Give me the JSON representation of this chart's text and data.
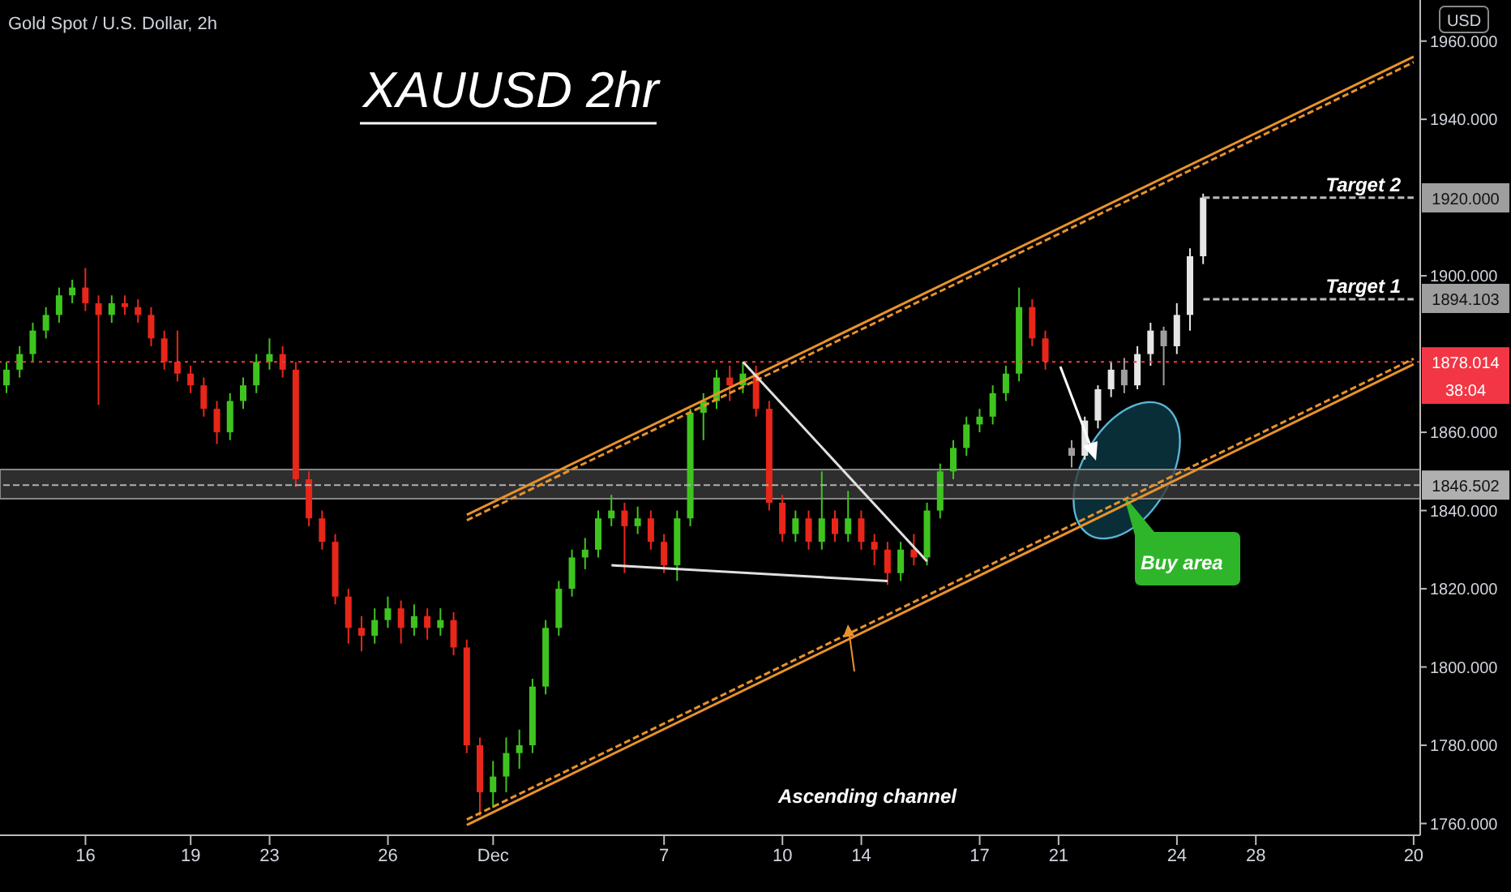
{
  "chart_data": {
    "type": "candlestick",
    "title": "XAUUSD 2hr",
    "subtitle": "Gold Spot / U.S. Dollar, 2h",
    "ylabel": "USD",
    "categories": [
      null,
      null,
      null,
      null,
      null,
      null,
      "16",
      null,
      null,
      null,
      null,
      null,
      null,
      null,
      "19",
      null,
      null,
      null,
      null,
      null,
      "23",
      null,
      null,
      null,
      null,
      null,
      null,
      null,
      null,
      "26",
      null,
      null,
      null,
      null,
      null,
      null,
      null,
      "Dec",
      null,
      null,
      null,
      null,
      null,
      null,
      null,
      null,
      null,
      null,
      null,
      null,
      "7",
      null,
      null,
      null,
      null,
      null,
      null,
      null,
      null,
      "10",
      null,
      null,
      null,
      null,
      null,
      "14",
      null,
      null,
      null,
      null,
      null,
      null,
      null,
      null,
      "17",
      null,
      null,
      null,
      null,
      null,
      "21",
      null,
      null,
      null,
      null,
      null,
      null,
      null,
      null,
      "24",
      null,
      null,
      null,
      null,
      null,
      "28",
      null,
      null,
      null,
      null,
      null,
      null,
      null,
      null,
      null,
      null,
      null,
      "20"
    ],
    "ylim": [
      1757,
      1970.5
    ],
    "yticks": [
      {
        "value": 1760,
        "label": "1760.000"
      },
      {
        "value": 1780,
        "label": "1780.000"
      },
      {
        "value": 1800,
        "label": "1800.000"
      },
      {
        "value": 1820,
        "label": "1820.000"
      },
      {
        "value": 1840,
        "label": "1840.000"
      },
      {
        "value": 1860,
        "label": "1860.000"
      },
      {
        "value": 1900,
        "label": "1900.000"
      },
      {
        "value": 1940,
        "label": "1940.000"
      },
      {
        "value": 1960,
        "label": "1960.000"
      }
    ],
    "series": [
      {
        "type": "line",
        "color": "#e8922a",
        "line_style": "solid",
        "values": [
          null,
          null,
          null,
          null,
          null,
          null,
          null,
          null,
          null,
          null,
          null,
          null,
          null,
          null,
          null,
          null,
          null,
          null,
          null,
          null,
          null,
          null,
          null,
          null,
          null,
          null,
          null,
          null,
          null,
          null,
          null,
          null,
          null,
          null,
          null,
          1838.9,
          null,
          null,
          null,
          null,
          null,
          null,
          null,
          null,
          null,
          null,
          null,
          null,
          null,
          null,
          null,
          null,
          null,
          null,
          null,
          null,
          null,
          null,
          null,
          null,
          null,
          null,
          null,
          null,
          null,
          null,
          null,
          null,
          null,
          null,
          null,
          null,
          null,
          null,
          null,
          null,
          null,
          null,
          null,
          null,
          null,
          null,
          null,
          null,
          null,
          null,
          null,
          null,
          null,
          null,
          null,
          null,
          null,
          null,
          null,
          null,
          null,
          null,
          null,
          null,
          null,
          null,
          null,
          null,
          null,
          null,
          null,
          1956
        ]
      },
      {
        "type": "line",
        "color": "#e8922a",
        "line_style": "dashed",
        "values": [
          null,
          null,
          null,
          null,
          null,
          null,
          null,
          null,
          null,
          null,
          null,
          null,
          null,
          null,
          null,
          null,
          null,
          null,
          null,
          null,
          null,
          null,
          null,
          null,
          null,
          null,
          null,
          null,
          null,
          null,
          null,
          null,
          null,
          null,
          null,
          1837.5,
          null,
          null,
          null,
          null,
          null,
          null,
          null,
          null,
          null,
          null,
          null,
          null,
          null,
          null,
          null,
          null,
          null,
          null,
          null,
          null,
          null,
          null,
          null,
          null,
          null,
          null,
          null,
          null,
          null,
          null,
          null,
          null,
          null,
          null,
          null,
          null,
          null,
          null,
          null,
          null,
          null,
          null,
          null,
          null,
          null,
          null,
          null,
          null,
          null,
          null,
          null,
          null,
          null,
          null,
          null,
          null,
          null,
          null,
          null,
          null,
          null,
          null,
          null,
          null,
          null,
          null,
          null,
          null,
          null,
          null,
          null,
          1954.6
        ]
      },
      {
        "type": "line",
        "color": "#e8922a",
        "line_style": "solid",
        "values": [
          null,
          null,
          null,
          null,
          null,
          null,
          null,
          null,
          null,
          null,
          null,
          null,
          null,
          null,
          null,
          null,
          null,
          null,
          null,
          null,
          null,
          null,
          null,
          null,
          null,
          null,
          null,
          null,
          null,
          null,
          null,
          null,
          null,
          null,
          null,
          1759.6,
          null,
          null,
          null,
          null,
          null,
          null,
          null,
          null,
          null,
          null,
          null,
          null,
          null,
          null,
          null,
          null,
          null,
          null,
          null,
          null,
          null,
          null,
          null,
          null,
          null,
          null,
          null,
          null,
          null,
          null,
          null,
          null,
          null,
          null,
          null,
          null,
          null,
          null,
          null,
          null,
          null,
          null,
          null,
          null,
          null,
          null,
          null,
          null,
          null,
          null,
          null,
          null,
          null,
          null,
          null,
          null,
          null,
          null,
          null,
          null,
          null,
          null,
          null,
          null,
          null,
          null,
          null,
          null,
          null,
          null,
          null,
          1877.4
        ]
      },
      {
        "type": "line",
        "color": "#e8922a",
        "line_style": "dashed",
        "values": [
          null,
          null,
          null,
          null,
          null,
          null,
          null,
          null,
          null,
          null,
          null,
          null,
          null,
          null,
          null,
          null,
          null,
          null,
          null,
          null,
          null,
          null,
          null,
          null,
          null,
          null,
          null,
          null,
          null,
          null,
          null,
          null,
          null,
          null,
          null,
          1761,
          null,
          null,
          null,
          null,
          null,
          null,
          null,
          null,
          null,
          null,
          null,
          null,
          null,
          null,
          null,
          null,
          null,
          null,
          null,
          null,
          null,
          null,
          null,
          null,
          null,
          null,
          null,
          null,
          null,
          null,
          null,
          null,
          null,
          null,
          null,
          null,
          null,
          null,
          null,
          null,
          null,
          null,
          null,
          null,
          null,
          null,
          null,
          null,
          null,
          null,
          null,
          null,
          null,
          null,
          null,
          null,
          null,
          null,
          null,
          null,
          null,
          null,
          null,
          null,
          null,
          null,
          null,
          null,
          null,
          null,
          null,
          1878.8
        ]
      },
      {
        "type": "line",
        "color": "#e0e0e0",
        "line_style": "solid",
        "values": [
          null,
          null,
          null,
          null,
          null,
          null,
          null,
          null,
          null,
          null,
          null,
          null,
          null,
          null,
          null,
          null,
          null,
          null,
          null,
          null,
          null,
          null,
          null,
          null,
          null,
          null,
          null,
          null,
          null,
          null,
          null,
          null,
          null,
          null,
          null,
          null,
          null,
          null,
          null,
          null,
          null,
          null,
          null,
          null,
          null,
          null,
          null,
          null,
          null,
          null,
          null,
          null,
          null,
          null,
          null,
          null,
          1878,
          null,
          null,
          null,
          null,
          null,
          null,
          null,
          null,
          null,
          null,
          null,
          null,
          null,
          1827,
          null,
          null,
          null,
          null,
          null,
          null,
          null,
          null,
          null,
          null,
          null,
          null,
          null,
          null,
          null,
          null,
          null,
          null,
          null,
          null,
          null,
          null,
          null,
          null,
          null,
          null,
          null,
          null,
          null,
          null,
          null,
          null,
          null,
          null,
          null,
          null,
          null
        ]
      },
      {
        "type": "line",
        "color": "#e0e0e0",
        "line_style": "solid",
        "values": [
          null,
          null,
          null,
          null,
          null,
          null,
          null,
          null,
          null,
          null,
          null,
          null,
          null,
          null,
          null,
          null,
          null,
          null,
          null,
          null,
          null,
          null,
          null,
          null,
          null,
          null,
          null,
          null,
          null,
          null,
          null,
          null,
          null,
          null,
          null,
          null,
          null,
          null,
          null,
          null,
          null,
          null,
          null,
          null,
          null,
          null,
          1826,
          null,
          null,
          null,
          null,
          null,
          null,
          null,
          null,
          null,
          null,
          null,
          null,
          null,
          null,
          null,
          null,
          null,
          null,
          null,
          null,
          1822,
          null,
          null,
          null,
          null,
          null,
          null,
          null,
          null,
          null,
          null,
          null,
          null,
          null,
          null,
          null,
          null,
          null,
          null,
          null,
          null,
          null,
          null,
          null,
          null,
          null,
          null,
          null,
          null,
          null,
          null,
          null,
          null,
          null,
          null,
          null,
          null,
          null,
          null,
          null,
          null
        ]
      },
      {
        "type": "line",
        "color": "#bbbbbb",
        "line_style": "dashed",
        "values": [
          null,
          null,
          null,
          null,
          null,
          null,
          null,
          null,
          null,
          null,
          null,
          null,
          null,
          null,
          null,
          null,
          null,
          null,
          null,
          null,
          null,
          null,
          null,
          null,
          null,
          null,
          null,
          null,
          null,
          null,
          null,
          null,
          null,
          null,
          null,
          null,
          null,
          null,
          null,
          null,
          null,
          null,
          null,
          null,
          null,
          null,
          null,
          null,
          null,
          null,
          null,
          null,
          null,
          null,
          null,
          null,
          null,
          null,
          null,
          null,
          null,
          null,
          null,
          null,
          null,
          null,
          null,
          null,
          null,
          null,
          null,
          null,
          null,
          null,
          null,
          null,
          null,
          null,
          null,
          null,
          null,
          null,
          null,
          null,
          null,
          null,
          null,
          null,
          null,
          null,
          null,
          1920,
          null,
          null,
          null,
          null,
          null,
          null,
          null,
          null,
          null,
          null,
          null,
          null,
          null,
          null,
          null,
          1920
        ]
      },
      {
        "type": "line",
        "color": "#bbbbbb",
        "line_style": "dashed",
        "values": [
          null,
          null,
          null,
          null,
          null,
          null,
          null,
          null,
          null,
          null,
          null,
          null,
          null,
          null,
          null,
          null,
          null,
          null,
          null,
          null,
          null,
          null,
          null,
          null,
          null,
          null,
          null,
          null,
          null,
          null,
          null,
          null,
          null,
          null,
          null,
          null,
          null,
          null,
          null,
          null,
          null,
          null,
          null,
          null,
          null,
          null,
          null,
          null,
          null,
          null,
          null,
          null,
          null,
          null,
          null,
          null,
          null,
          null,
          null,
          null,
          null,
          null,
          null,
          null,
          null,
          null,
          null,
          null,
          null,
          null,
          null,
          null,
          null,
          null,
          null,
          null,
          null,
          null,
          null,
          null,
          null,
          null,
          null,
          null,
          null,
          null,
          null,
          null,
          null,
          null,
          null,
          1894,
          null,
          null,
          null,
          null,
          null,
          null,
          null,
          null,
          null,
          null,
          null,
          null,
          null,
          null,
          null,
          1894
        ]
      },
      {
        "ohlc": [
          [
            1872,
            1878,
            1870,
            1876
          ],
          [
            1876,
            1882,
            1874,
            1880
          ],
          [
            1880,
            1888,
            1878,
            1886
          ],
          [
            1886,
            1892,
            1884,
            1890
          ],
          [
            1890,
            1897,
            1888,
            1895
          ],
          [
            1895,
            1899,
            1893,
            1897
          ],
          [
            1897,
            1902,
            1891,
            1893
          ],
          [
            1893,
            1895,
            1867,
            1890
          ],
          [
            1890,
            1895,
            1888,
            1893
          ],
          [
            1893,
            1895,
            1890,
            1892
          ],
          [
            1892,
            1894,
            1888,
            1890
          ],
          [
            1890,
            1892,
            1882,
            1884
          ],
          [
            1884,
            1886,
            1876,
            1878
          ],
          [
            1878,
            1886,
            1873,
            1875
          ],
          [
            1875,
            1877,
            1870,
            1872
          ],
          [
            1872,
            1874,
            1864,
            1866
          ],
          [
            1866,
            1868,
            1857,
            1860
          ],
          [
            1860,
            1870,
            1858,
            1868
          ],
          [
            1868,
            1874,
            1866,
            1872
          ],
          [
            1872,
            1880,
            1870,
            1878
          ],
          [
            1878,
            1884,
            1876,
            1880
          ],
          [
            1880,
            1882,
            1874,
            1876
          ],
          [
            1876,
            1878,
            1846,
            1848
          ],
          [
            1848,
            1850,
            1836,
            1838
          ],
          [
            1838,
            1840,
            1830,
            1832
          ],
          [
            1832,
            1834,
            1816,
            1818
          ],
          [
            1818,
            1820,
            1806,
            1810
          ],
          [
            1810,
            1813,
            1804,
            1808
          ],
          [
            1808,
            1815,
            1806,
            1812
          ],
          [
            1812,
            1818,
            1810,
            1815
          ],
          [
            1815,
            1817,
            1806,
            1810
          ],
          [
            1810,
            1816,
            1808,
            1813
          ],
          [
            1813,
            1815,
            1807,
            1810
          ],
          [
            1810,
            1815,
            1808,
            1812
          ],
          [
            1812,
            1814,
            1803,
            1805
          ],
          [
            1805,
            1807,
            1778,
            1780
          ],
          [
            1780,
            1782,
            1762,
            1768
          ],
          [
            1768,
            1776,
            1764,
            1772
          ],
          [
            1772,
            1782,
            1768,
            1778
          ],
          [
            1778,
            1784,
            1774,
            1780
          ],
          [
            1780,
            1797,
            1778,
            1795
          ],
          [
            1795,
            1812,
            1793,
            1810
          ],
          [
            1810,
            1822,
            1808,
            1820
          ],
          [
            1820,
            1830,
            1818,
            1828
          ],
          [
            1828,
            1833,
            1825,
            1830
          ],
          [
            1830,
            1840,
            1828,
            1838
          ],
          [
            1838,
            1844,
            1836,
            1840
          ],
          [
            1840,
            1842,
            1824,
            1836
          ],
          [
            1836,
            1841,
            1834,
            1838
          ],
          [
            1838,
            1840,
            1830,
            1832
          ],
          [
            1832,
            1834,
            1824,
            1826
          ],
          [
            1826,
            1840,
            1822,
            1838
          ],
          [
            1838,
            1866,
            1836,
            1865
          ],
          [
            1865,
            1870,
            1858,
            1868
          ],
          [
            1868,
            1876,
            1866,
            1874
          ],
          [
            1874,
            1877,
            1868,
            1872
          ],
          [
            1872,
            1878,
            1870,
            1875
          ],
          [
            1875,
            1877,
            1864,
            1866
          ],
          [
            1866,
            1868,
            1840,
            1842
          ],
          [
            1842,
            1844,
            1832,
            1834
          ],
          [
            1834,
            1840,
            1832,
            1838
          ],
          [
            1838,
            1840,
            1830,
            1832
          ],
          [
            1832,
            1850,
            1830,
            1838
          ],
          [
            1838,
            1840,
            1832,
            1834
          ],
          [
            1834,
            1845,
            1832,
            1838
          ],
          [
            1838,
            1840,
            1830,
            1832
          ],
          [
            1832,
            1834,
            1826,
            1830
          ],
          [
            1830,
            1832,
            1821,
            1824
          ],
          [
            1824,
            1832,
            1822,
            1830
          ],
          [
            1830,
            1834,
            1826,
            1828
          ],
          [
            1828,
            1842,
            1826,
            1840
          ],
          [
            1840,
            1852,
            1838,
            1850
          ],
          [
            1850,
            1858,
            1848,
            1856
          ],
          [
            1856,
            1864,
            1854,
            1862
          ],
          [
            1862,
            1866,
            1860,
            1864
          ],
          [
            1864,
            1872,
            1862,
            1870
          ],
          [
            1870,
            1877,
            1868,
            1875
          ],
          [
            1875,
            1897,
            1873,
            1892
          ],
          [
            1892,
            1894,
            1882,
            1884
          ],
          [
            1884,
            1886,
            1876,
            1878.014
          ],
          null,
          null,
          null,
          null,
          null,
          null,
          null,
          null,
          null,
          null,
          null,
          null,
          null,
          null,
          null,
          null,
          null,
          null,
          null,
          null,
          null,
          null,
          null,
          null,
          null,
          null,
          null,
          null
        ],
        "colors": [
          "#3fc41f",
          "#3fc41f",
          "#3fc41f",
          "#3fc41f",
          "#3fc41f",
          "#3fc41f",
          "#e8261a",
          "#e8261a",
          "#3fc41f",
          "#e8261a",
          "#e8261a",
          "#e8261a",
          "#e8261a",
          "#e8261a",
          "#e8261a",
          "#e8261a",
          "#e8261a",
          "#3fc41f",
          "#3fc41f",
          "#3fc41f",
          "#3fc41f",
          "#e8261a",
          "#e8261a",
          "#e8261a",
          "#e8261a",
          "#e8261a",
          "#e8261a",
          "#e8261a",
          "#3fc41f",
          "#3fc41f",
          "#e8261a",
          "#3fc41f",
          "#e8261a",
          "#3fc41f",
          "#e8261a",
          "#e8261a",
          "#e8261a",
          "#3fc41f",
          "#3fc41f",
          "#3fc41f",
          "#3fc41f",
          "#3fc41f",
          "#3fc41f",
          "#3fc41f",
          "#3fc41f",
          "#3fc41f",
          "#3fc41f",
          "#e8261a",
          "#3fc41f",
          "#e8261a",
          "#e8261a",
          "#3fc41f",
          "#3fc41f",
          "#3fc41f",
          "#3fc41f",
          "#e8261a",
          "#3fc41f",
          "#e8261a",
          "#e8261a",
          "#e8261a",
          "#3fc41f",
          "#e8261a",
          "#3fc41f",
          "#e8261a",
          "#3fc41f",
          "#e8261a",
          "#e8261a",
          "#e8261a",
          "#3fc41f",
          "#e8261a",
          "#3fc41f",
          "#3fc41f",
          "#3fc41f",
          "#3fc41f",
          "#3fc41f",
          "#3fc41f",
          "#3fc41f",
          "#3fc41f",
          "#e8261a",
          "#e8261a",
          null,
          null,
          null,
          null,
          null,
          null,
          null,
          null,
          null,
          null,
          null,
          null,
          null,
          null,
          null,
          null,
          null,
          null,
          null,
          null,
          null,
          null,
          null,
          null,
          null,
          null,
          null,
          null
        ]
      },
      {
        "ohlc": [
          null,
          null,
          null,
          null,
          null,
          null,
          null,
          null,
          null,
          null,
          null,
          null,
          null,
          null,
          null,
          null,
          null,
          null,
          null,
          null,
          null,
          null,
          null,
          null,
          null,
          null,
          null,
          null,
          null,
          null,
          null,
          null,
          null,
          null,
          null,
          null,
          null,
          null,
          null,
          null,
          null,
          null,
          null,
          null,
          null,
          null,
          null,
          null,
          null,
          null,
          null,
          null,
          null,
          null,
          null,
          null,
          null,
          null,
          null,
          null,
          null,
          null,
          null,
          null,
          null,
          null,
          null,
          null,
          null,
          null,
          null,
          null,
          null,
          null,
          null,
          null,
          null,
          null,
          null,
          null,
          null,
          [
            1856,
            1858,
            1851,
            1854
          ],
          [
            1854,
            1864,
            1853,
            1863
          ],
          [
            1863,
            1872,
            1861,
            1871
          ],
          [
            1871,
            1878,
            1869,
            1876
          ],
          [
            1876,
            1879,
            1870,
            1872
          ],
          [
            1872,
            1882,
            1871,
            1880
          ],
          [
            1880,
            1888,
            1877,
            1886
          ],
          [
            1886,
            1887,
            1872,
            1882
          ],
          [
            1882,
            1893,
            1880,
            1890
          ],
          [
            1890,
            1907,
            1886,
            1905
          ],
          [
            1905,
            1921,
            1903,
            1920
          ],
          null,
          null,
          null,
          null,
          null,
          null,
          null,
          null,
          null,
          null,
          null,
          null,
          null,
          null,
          null,
          null
        ],
        "colors": [
          null,
          null,
          null,
          null,
          null,
          null,
          null,
          null,
          null,
          null,
          null,
          null,
          null,
          null,
          null,
          null,
          null,
          null,
          null,
          null,
          null,
          null,
          null,
          null,
          null,
          null,
          null,
          null,
          null,
          null,
          null,
          null,
          null,
          null,
          null,
          null,
          null,
          null,
          null,
          null,
          null,
          null,
          null,
          null,
          null,
          null,
          null,
          null,
          null,
          null,
          null,
          null,
          null,
          null,
          null,
          null,
          null,
          null,
          null,
          null,
          null,
          null,
          null,
          null,
          null,
          null,
          null,
          null,
          null,
          null,
          null,
          null,
          null,
          null,
          null,
          null,
          null,
          null,
          null,
          null,
          null,
          "#9e9e9e",
          "#e6e6e6",
          "#e6e6e6",
          "#e6e6e6",
          "#9e9e9e",
          "#e6e6e6",
          "#e6e6e6",
          "#9e9e9e",
          "#e6e6e6",
          "#e6e6e6",
          "#e6e6e6",
          null,
          null,
          null,
          null,
          null,
          null,
          null,
          null,
          null,
          null,
          null,
          null,
          null,
          null,
          null,
          null
        ]
      }
    ],
    "ref_lines": [
      {
        "axis": "y",
        "value": 1878.014,
        "label": "1878.014",
        "color": "#f23645",
        "line_style": "dotted"
      },
      {
        "axis": "y",
        "value": 1846.502,
        "label": "1846.502",
        "color": "#b0b0b0",
        "line_style": "dashed"
      }
    ],
    "bands": [
      {
        "axis": "y",
        "from": 1843,
        "to": 1850.5,
        "color": "#3a3a3a"
      }
    ],
    "annotations": [
      {
        "text": "Target 2",
        "y": 1920
      },
      {
        "text": "Target 1",
        "y": 1894
      },
      "1920.000",
      "1894.103",
      "38:04",
      "Ascending channel",
      "Buy area"
    ]
  }
}
